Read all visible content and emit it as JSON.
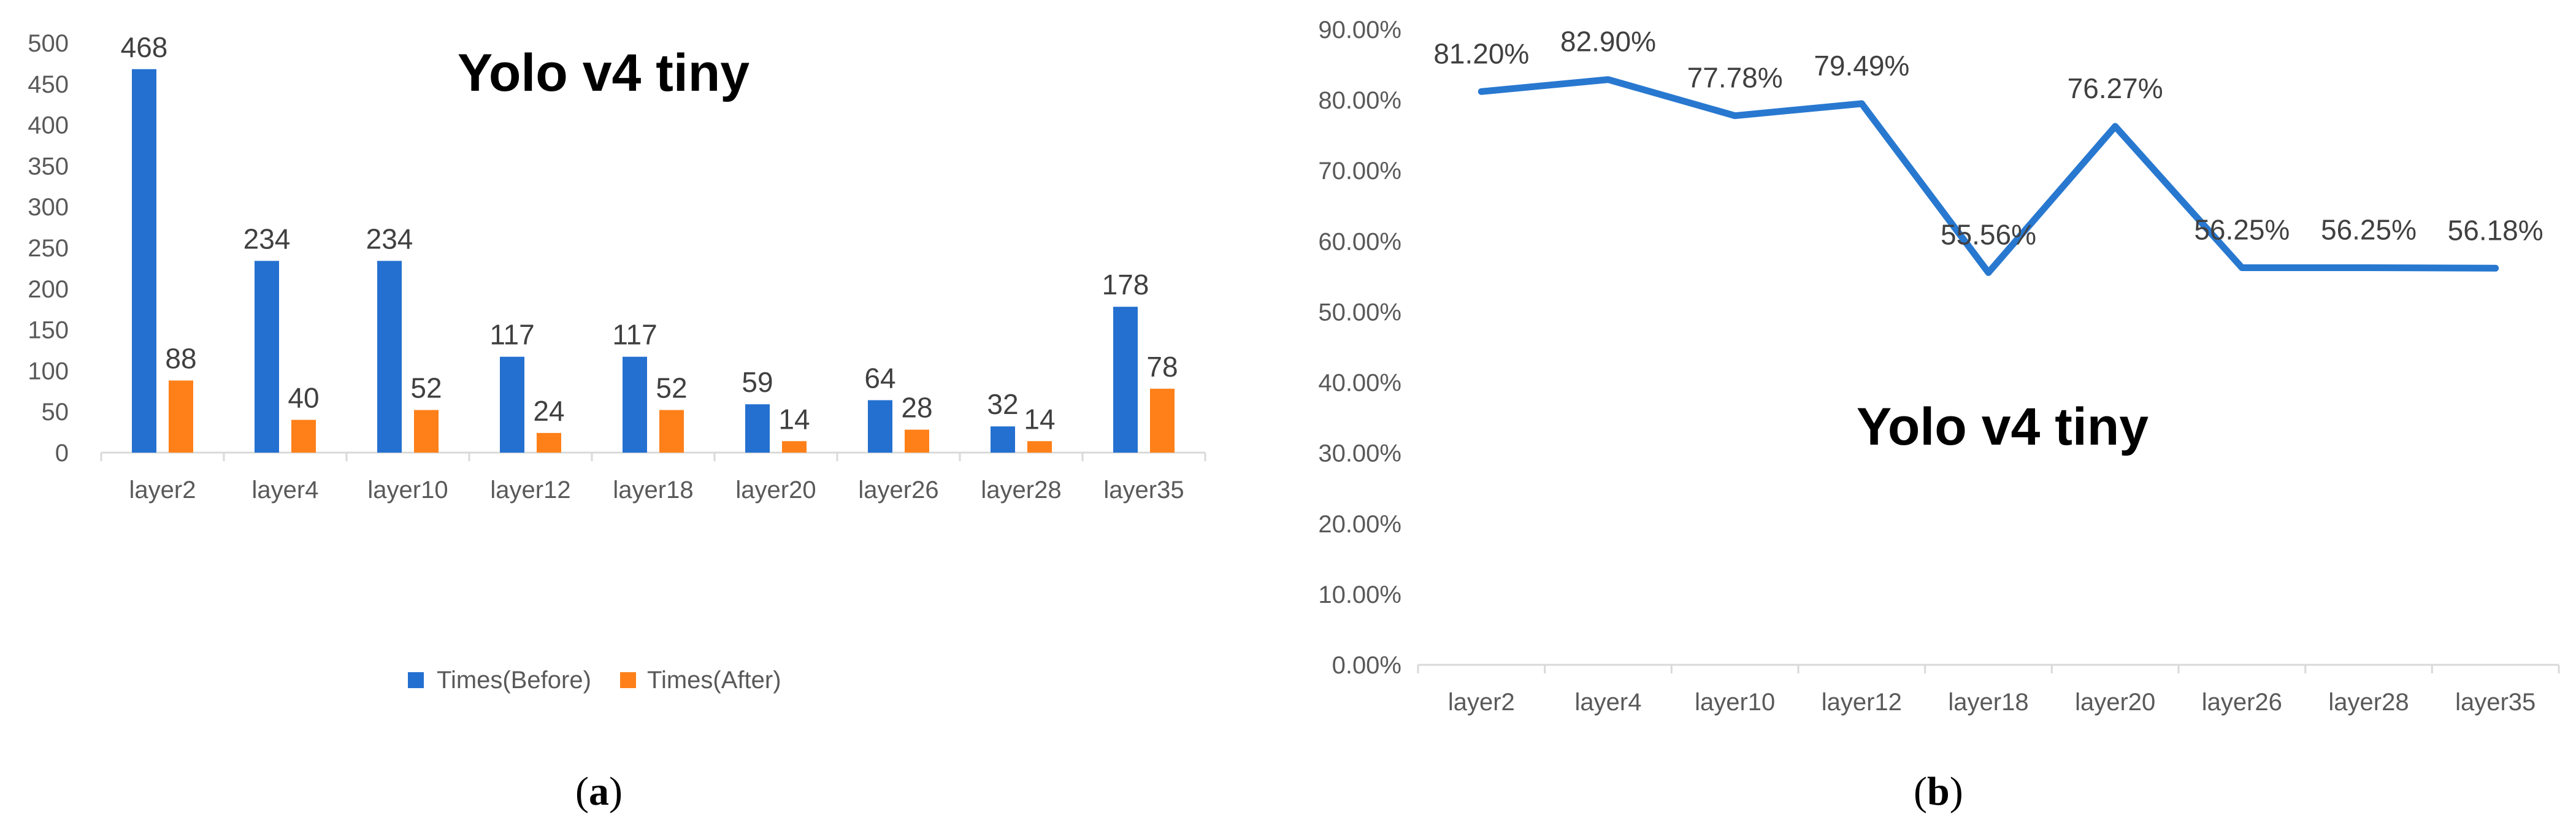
{
  "chart_data": [
    {
      "type": "bar",
      "panel": "a",
      "title": "Yolo v4 tiny",
      "categories": [
        "layer2",
        "layer4",
        "layer10",
        "layer12",
        "layer18",
        "layer20",
        "layer26",
        "layer28",
        "layer35"
      ],
      "series": [
        {
          "name": "Times(Before)",
          "color": "#2470D0",
          "values": [
            468,
            234,
            234,
            117,
            117,
            59,
            64,
            32,
            178
          ]
        },
        {
          "name": "Times(After)",
          "color": "#FF8019",
          "values": [
            88,
            40,
            52,
            24,
            52,
            14,
            28,
            14,
            78
          ]
        }
      ],
      "yticks": [
        "0",
        "50",
        "100",
        "150",
        "200",
        "250",
        "300",
        "350",
        "400",
        "450",
        "500"
      ],
      "ylim": [
        0,
        500
      ],
      "grid": false,
      "legend": "bottom"
    },
    {
      "type": "line",
      "panel": "b",
      "title": "Yolo v4 tiny",
      "categories": [
        "layer2",
        "layer4",
        "layer10",
        "layer12",
        "layer18",
        "layer20",
        "layer26",
        "layer28",
        "layer35"
      ],
      "series": [
        {
          "color": "#2878D0",
          "values": [
            81.2,
            82.9,
            77.78,
            79.49,
            55.56,
            76.27,
            56.25,
            56.25,
            56.18
          ],
          "labels": [
            "81.20%",
            "82.90%",
            "77.78%",
            "79.49%",
            "55.56%",
            "76.27%",
            "56.25%",
            "56.25%",
            "56.18%"
          ]
        }
      ],
      "yticks": [
        "0.00%",
        "10.00%",
        "20.00%",
        "30.00%",
        "40.00%",
        "50.00%",
        "60.00%",
        "70.00%",
        "80.00%",
        "90.00%"
      ],
      "ylim": [
        0,
        90
      ],
      "grid": false
    }
  ],
  "panel_labels": [
    "a",
    "b"
  ]
}
